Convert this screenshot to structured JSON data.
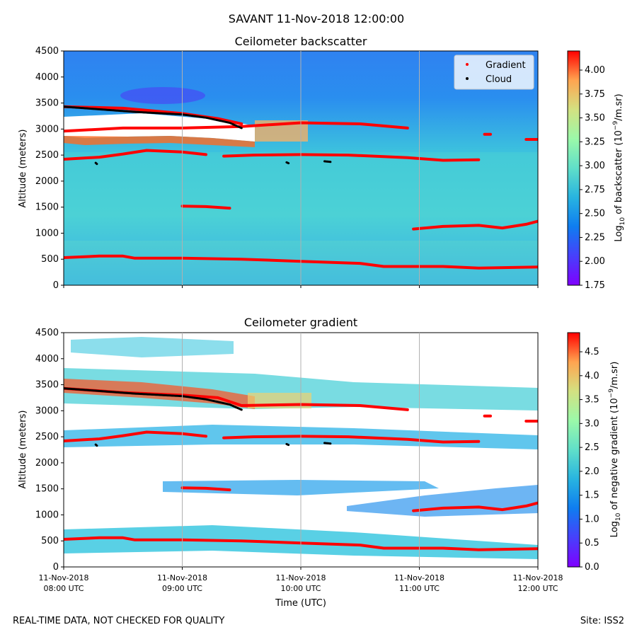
{
  "suptitle": "SAVANT 11-Nov-2018 12:00:00",
  "footer": {
    "left": "REAL-TIME DATA, NOT CHECKED FOR QUALITY",
    "right": "Site: ISS2"
  },
  "x_ticks": [
    {
      "line1": "11-Nov-2018",
      "line2": "08:00 UTC",
      "hour": 8
    },
    {
      "line1": "11-Nov-2018",
      "line2": "09:00 UTC",
      "hour": 9
    },
    {
      "line1": "11-Nov-2018",
      "line2": "10:00 UTC",
      "hour": 10
    },
    {
      "line1": "11-Nov-2018",
      "line2": "11:00 UTC",
      "hour": 11
    },
    {
      "line1": "11-Nov-2018",
      "line2": "12:00 UTC",
      "hour": 12
    }
  ],
  "xlabel": "Time (UTC)",
  "chart_data": [
    {
      "type": "heatmap",
      "title": "Ceilometer backscatter",
      "ylabel": "Altitude (meters)",
      "xlabel": "",
      "xlim": [
        8,
        12
      ],
      "ylim": [
        0,
        4500
      ],
      "y_ticks": [
        "0",
        "500",
        "1000",
        "1500",
        "2000",
        "2500",
        "3000",
        "3500",
        "4000",
        "4500"
      ],
      "colorbar": {
        "label_prefix": "Log",
        "label_sub": "10",
        "label_mid": " of backscatter (10",
        "label_sup": "−9",
        "label_suffix": "/m.sr)",
        "min": 1.75,
        "max": 4.2,
        "ticks": [
          "1.75",
          "2.00",
          "2.25",
          "2.50",
          "2.75",
          "3.00",
          "3.25",
          "3.50",
          "3.75",
          "4.00"
        ]
      },
      "legend": {
        "placement": "top-right",
        "entries": [
          {
            "label": "Gradient",
            "color": "#ff0000"
          },
          {
            "label": "Cloud",
            "color": "#000000"
          }
        ]
      },
      "gradient_series": [
        [
          [
            8.0,
            530
          ],
          [
            8.3,
            560
          ],
          [
            8.5,
            560
          ],
          [
            8.6,
            520
          ],
          [
            9.0,
            520
          ],
          [
            9.5,
            500
          ],
          [
            10.0,
            460
          ],
          [
            10.5,
            420
          ],
          [
            10.7,
            360
          ],
          [
            10.9,
            360
          ],
          [
            11.2,
            360
          ],
          [
            11.5,
            330
          ],
          [
            12.0,
            350
          ]
        ],
        [
          [
            8.0,
            2420
          ],
          [
            8.3,
            2460
          ],
          [
            8.5,
            2520
          ],
          [
            8.7,
            2590
          ],
          [
            9.0,
            2560
          ],
          [
            9.2,
            2510
          ]
        ],
        [
          [
            9.35,
            2480
          ],
          [
            9.6,
            2500
          ],
          [
            10.0,
            2510
          ],
          [
            10.4,
            2500
          ],
          [
            10.7,
            2470
          ],
          [
            10.9,
            2450
          ],
          [
            11.2,
            2400
          ],
          [
            11.5,
            2410
          ]
        ],
        [
          [
            8.0,
            2960
          ],
          [
            8.5,
            3020
          ],
          [
            9.0,
            3020
          ],
          [
            9.5,
            3050
          ],
          [
            10.0,
            3120
          ],
          [
            10.5,
            3100
          ],
          [
            10.9,
            3020
          ]
        ],
        [
          [
            8.0,
            3430
          ],
          [
            8.5,
            3400
          ],
          [
            9.0,
            3300
          ],
          [
            9.3,
            3200
          ],
          [
            9.5,
            3100
          ]
        ],
        [
          [
            9.0,
            1520
          ],
          [
            9.2,
            1510
          ],
          [
            9.4,
            1480
          ]
        ],
        [
          [
            10.95,
            1080
          ],
          [
            11.2,
            1130
          ],
          [
            11.5,
            1150
          ],
          [
            11.7,
            1100
          ],
          [
            11.9,
            1170
          ],
          [
            12.0,
            1230
          ]
        ],
        [
          [
            11.55,
            2900
          ],
          [
            11.6,
            2900
          ]
        ],
        [
          [
            11.9,
            2800
          ],
          [
            12.0,
            2800
          ]
        ]
      ],
      "cloud_series": [
        [
          [
            8.0,
            3430
          ],
          [
            8.3,
            3380
          ],
          [
            8.6,
            3330
          ],
          [
            9.0,
            3280
          ],
          [
            9.2,
            3220
          ],
          [
            9.4,
            3120
          ],
          [
            9.5,
            3020
          ]
        ],
        [
          [
            8.27,
            2350
          ],
          [
            8.28,
            2330
          ]
        ],
        [
          [
            9.88,
            2360
          ],
          [
            9.9,
            2340
          ]
        ],
        [
          [
            10.2,
            2380
          ],
          [
            10.25,
            2370
          ]
        ]
      ]
    },
    {
      "type": "heatmap",
      "title": "Ceilometer gradient",
      "ylabel": "Altitude (meters)",
      "xlabel": "Time (UTC)",
      "xlim": [
        8,
        12
      ],
      "ylim": [
        0,
        4500
      ],
      "y_ticks": [
        "0",
        "500",
        "1000",
        "1500",
        "2000",
        "2500",
        "3000",
        "3500",
        "4000",
        "4500"
      ],
      "colorbar": {
        "label_prefix": "Log",
        "label_sub": "10",
        "label_mid": " of negative gradient (10",
        "label_sup": "−9",
        "label_suffix": "/m.sr)",
        "min": 0.0,
        "max": 4.9,
        "ticks": [
          "0.0",
          "0.5",
          "1.0",
          "1.5",
          "2.0",
          "2.5",
          "3.0",
          "3.5",
          "4.0",
          "4.5"
        ]
      },
      "gradient_series": [
        [
          [
            8.0,
            530
          ],
          [
            8.3,
            560
          ],
          [
            8.5,
            560
          ],
          [
            8.6,
            520
          ],
          [
            9.0,
            520
          ],
          [
            9.5,
            500
          ],
          [
            10.0,
            460
          ],
          [
            10.5,
            420
          ],
          [
            10.7,
            360
          ],
          [
            10.9,
            360
          ],
          [
            11.2,
            360
          ],
          [
            11.5,
            330
          ],
          [
            12.0,
            350
          ]
        ],
        [
          [
            8.0,
            2420
          ],
          [
            8.3,
            2460
          ],
          [
            8.5,
            2520
          ],
          [
            8.7,
            2590
          ],
          [
            9.0,
            2560
          ],
          [
            9.2,
            2510
          ]
        ],
        [
          [
            9.35,
            2480
          ],
          [
            9.6,
            2500
          ],
          [
            10.0,
            2510
          ],
          [
            10.4,
            2500
          ],
          [
            10.7,
            2470
          ],
          [
            10.9,
            2450
          ],
          [
            11.2,
            2400
          ],
          [
            11.5,
            2410
          ]
        ],
        [
          [
            8.0,
            3430
          ],
          [
            8.5,
            3350
          ],
          [
            9.0,
            3300
          ],
          [
            9.3,
            3250
          ],
          [
            9.5,
            3100
          ],
          [
            10.0,
            3120
          ],
          [
            10.5,
            3100
          ],
          [
            10.9,
            3020
          ]
        ],
        [
          [
            9.0,
            1520
          ],
          [
            9.2,
            1510
          ],
          [
            9.4,
            1480
          ]
        ],
        [
          [
            10.95,
            1080
          ],
          [
            11.2,
            1130
          ],
          [
            11.5,
            1150
          ],
          [
            11.7,
            1100
          ],
          [
            11.9,
            1170
          ],
          [
            12.0,
            1230
          ]
        ],
        [
          [
            11.55,
            2900
          ],
          [
            11.6,
            2900
          ]
        ],
        [
          [
            11.9,
            2800
          ],
          [
            12.0,
            2800
          ]
        ]
      ],
      "cloud_series": [
        [
          [
            8.0,
            3430
          ],
          [
            8.3,
            3380
          ],
          [
            8.6,
            3330
          ],
          [
            9.0,
            3280
          ],
          [
            9.2,
            3220
          ],
          [
            9.4,
            3120
          ],
          [
            9.5,
            3020
          ]
        ],
        [
          [
            8.27,
            2350
          ],
          [
            8.28,
            2330
          ]
        ],
        [
          [
            9.88,
            2360
          ],
          [
            9.9,
            2340
          ]
        ],
        [
          [
            10.2,
            2380
          ],
          [
            10.25,
            2370
          ]
        ]
      ]
    }
  ]
}
